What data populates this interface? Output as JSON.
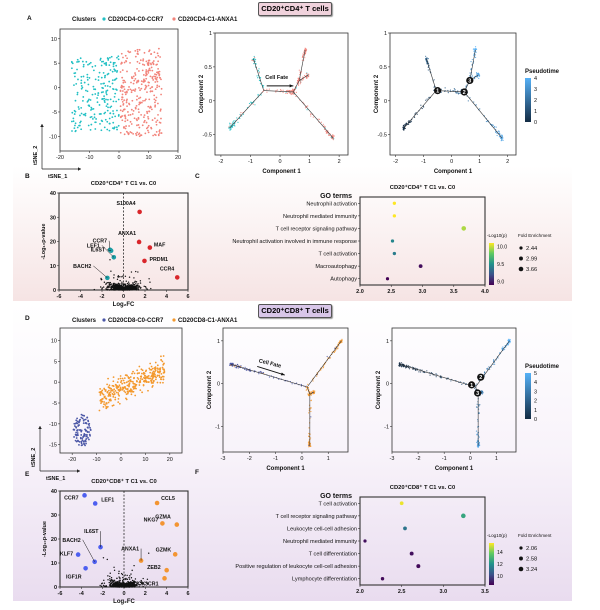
{
  "figure": {
    "cd4_header": "CD20⁺CD4⁺ T cells",
    "cd8_header": "CD20⁺CD8⁺ T cells",
    "panel_labels": [
      "A",
      "B",
      "C",
      "D",
      "E",
      "F"
    ]
  },
  "colors": {
    "cd4_c0": "#22c0c4",
    "cd4_c1": "#f2837a",
    "cd8_c0": "#4a56a6",
    "cd8_c1": "#f3992e",
    "volcano_up_cd4": "#d9262b",
    "volcano_down_cd4": "#1b9ea5",
    "volcano_down_cd8": "#4d5ff0",
    "volcano_up_cd8": "#f39532",
    "pseudotime_low": "#132b43",
    "pseudotime_high": "#56b1f7"
  },
  "chart_data": [
    {
      "id": "A-tsne",
      "type": "scatter",
      "legend_title": "Clusters",
      "xlabel": "tSNE_1",
      "ylabel": "tSNE_2",
      "xlim": [
        -20,
        20
      ],
      "ylim": [
        -13,
        12
      ],
      "xticks": [
        -20,
        -10,
        0,
        10,
        20
      ],
      "yticks": [
        -10,
        -5,
        0,
        5,
        10
      ],
      "clusters": [
        {
          "name": "CD20CD4-C0-CCR7",
          "color": "#22c0c4",
          "x_range": [
            -17,
            0
          ],
          "y_range": [
            -10,
            7
          ]
        },
        {
          "name": "CD20CD4-C1-ANXA1",
          "color": "#f2837a",
          "x_range": [
            0,
            15
          ],
          "y_range": [
            -11,
            8
          ]
        }
      ]
    },
    {
      "id": "A-trajectory-clusters",
      "type": "scatter",
      "xlabel": "Component 1",
      "ylabel": "Component 2",
      "xlim": [
        -2.2,
        2.3
      ],
      "ylim": [
        -0.8,
        1.0
      ],
      "xticks": [
        -2,
        -1,
        0,
        1,
        2
      ],
      "yticks": [
        -0.5,
        0.0,
        0.5,
        1.0
      ],
      "annotation": "Cell Fate",
      "edges": [
        {
          "from": [
            -1.7,
            -0.4
          ],
          "to": [
            -0.55,
            0.15
          ],
          "cluster": 0,
          "pt": [
            0,
            1.2
          ]
        },
        {
          "from": [
            -0.9,
            0.62
          ],
          "to": [
            -0.55,
            0.15
          ],
          "cluster": 0,
          "pt": [
            1.8,
            1.2
          ]
        },
        {
          "from": [
            -0.55,
            0.15
          ],
          "to": [
            0.45,
            0.13
          ],
          "cluster": 1,
          "pt": [
            1.2,
            2.0
          ]
        },
        {
          "from": [
            0.45,
            0.13
          ],
          "to": [
            1.8,
            -0.55
          ],
          "cluster": 1,
          "pt": [
            2.0,
            3.6
          ]
        },
        {
          "from": [
            0.45,
            0.13
          ],
          "to": [
            0.65,
            0.3
          ],
          "cluster": 1,
          "pt": [
            2.0,
            2.6
          ]
        },
        {
          "from": [
            0.65,
            0.3
          ],
          "to": [
            0.85,
            0.75
          ],
          "cluster": 1,
          "pt": [
            2.6,
            4.0
          ]
        },
        {
          "from": [
            0.65,
            0.3
          ],
          "to": [
            0.95,
            0.38
          ],
          "cluster": 1,
          "pt": [
            2.6,
            3.6
          ]
        }
      ]
    },
    {
      "id": "A-trajectory-pseudotime",
      "type": "scatter",
      "xlabel": "Component 1",
      "ylabel": "Component 2",
      "legend_title": "Pseudotime",
      "colorbar_ticks": [
        0,
        1,
        2,
        3,
        4
      ],
      "branch_nodes": [
        {
          "label": "1",
          "x": -0.5,
          "y": 0.15
        },
        {
          "label": "2",
          "x": 0.45,
          "y": 0.13
        },
        {
          "label": "3",
          "x": 0.65,
          "y": 0.3
        }
      ]
    },
    {
      "id": "B-volcano",
      "type": "scatter",
      "title": "CD20⁺CD4⁺ T C1 vs. C0",
      "xlabel": "Log₂FC",
      "ylabel": "-Log₁₀p-value",
      "xlim": [
        -6,
        6
      ],
      "ylim": [
        0,
        40
      ],
      "xticks": [
        -6,
        -4,
        -2,
        0,
        2,
        4,
        6
      ],
      "yticks": [
        0,
        10,
        20,
        30,
        40
      ],
      "labeled_genes": [
        {
          "gene": "S100A4",
          "x": 1.5,
          "y": 32.2,
          "group": "up"
        },
        {
          "gene": "ANXA1",
          "x": 1.45,
          "y": 19.8,
          "group": "up"
        },
        {
          "gene": "MAF",
          "x": 2.45,
          "y": 17.5,
          "group": "up"
        },
        {
          "gene": "PRDM1",
          "x": 1.95,
          "y": 12.0,
          "group": "up"
        },
        {
          "gene": "CCR4",
          "x": 5.0,
          "y": 5.2,
          "group": "up"
        },
        {
          "gene": "CCR7",
          "x": -1.25,
          "y": 16.6,
          "group": "down"
        },
        {
          "gene": "IL6ST",
          "x": -1.15,
          "y": 16.2,
          "group": "down"
        },
        {
          "gene": "LEF1",
          "x": -0.9,
          "y": 13.5,
          "group": "down"
        },
        {
          "gene": "BACH2",
          "x": -1.5,
          "y": 5.0,
          "group": "down"
        }
      ]
    },
    {
      "id": "C-go",
      "type": "scatter",
      "title": "CD20⁺CD4⁺ T C1 vs. C0",
      "ylabel": "GO terms",
      "xlim": [
        2.0,
        4.0
      ],
      "xticks": [
        "2.0",
        "2.5",
        "3.0",
        "3.5",
        "4.0"
      ],
      "color_legend_title": "-Log10(p)",
      "color_ticks": [
        "10.0",
        "9.5",
        "9.0"
      ],
      "color_range": [
        8.9,
        10.1
      ],
      "size_legend_title": "Fold Enrichment",
      "size_legend": [
        "2.44",
        "2.99",
        "3.66"
      ],
      "terms": [
        {
          "term": "Neutrophil activation",
          "fold_enrichment": 2.55,
          "neg_log10_p": 10.1
        },
        {
          "term": "Neutrophil mediated immunity",
          "fold_enrichment": 2.55,
          "neg_log10_p": 10.1
        },
        {
          "term": "T cell receptor signaling pathway",
          "fold_enrichment": 3.66,
          "neg_log10_p": 9.95
        },
        {
          "term": "Neutrophil activation involved in immune response",
          "fold_enrichment": 2.52,
          "neg_log10_p": 9.45
        },
        {
          "term": "T cell activation",
          "fold_enrichment": 2.55,
          "neg_log10_p": 9.4
        },
        {
          "term": "Macroautophagy",
          "fold_enrichment": 2.97,
          "neg_log10_p": 8.95
        },
        {
          "term": "Autophagy",
          "fold_enrichment": 2.44,
          "neg_log10_p": 8.9
        }
      ]
    },
    {
      "id": "D-tsne",
      "type": "scatter",
      "legend_title": "Clusters",
      "xlabel": "tSNE_1",
      "ylabel": "tSNE_2",
      "xlim": [
        -25,
        25
      ],
      "ylim": [
        -17,
        13
      ],
      "xticks": [
        -20,
        -10,
        0,
        10,
        20
      ],
      "yticks": [
        -15,
        -10,
        -5,
        0,
        5,
        10
      ],
      "clusters": [
        {
          "name": "CD20CD8-C0-CCR7",
          "color": "#4a56a6",
          "x_range": [
            -20,
            -12
          ],
          "y_range": [
            -15,
            -8
          ]
        },
        {
          "name": "CD20CD8-C1-ANXA1",
          "color": "#f3992e",
          "x_range": [
            -10,
            19
          ],
          "y_range": [
            -6,
            10
          ]
        }
      ]
    },
    {
      "id": "D-trajectory-clusters",
      "type": "scatter",
      "xlabel": "Component 1",
      "ylabel": "Component 2",
      "xlim": [
        -3.0,
        1.75
      ],
      "ylim": [
        -1.6,
        1.3
      ],
      "xticks": [
        -3,
        -2,
        -1,
        0,
        1
      ],
      "yticks": [
        -1,
        0,
        1
      ],
      "annotation": "Cell Fate",
      "edges": [
        {
          "from": [
            -2.7,
            0.45
          ],
          "to": [
            0.2,
            -0.08
          ],
          "cluster": 0,
          "pt": [
            0,
            2.0
          ]
        },
        {
          "from": [
            0.2,
            -0.08
          ],
          "to": [
            1.5,
            1.0
          ],
          "cluster": 1,
          "pt": [
            2.0,
            5.0
          ]
        },
        {
          "from": [
            0.2,
            -0.08
          ],
          "to": [
            0.3,
            -0.25
          ],
          "cluster": 1,
          "pt": [
            2.0,
            2.4
          ]
        },
        {
          "from": [
            0.3,
            -0.25
          ],
          "to": [
            0.3,
            -1.45
          ],
          "cluster": 1,
          "pt": [
            2.4,
            4.6
          ]
        },
        {
          "from": [
            0.3,
            -0.25
          ],
          "to": [
            0.45,
            -0.2
          ],
          "cluster": 1,
          "pt": [
            2.4,
            3.0
          ]
        }
      ]
    },
    {
      "id": "D-trajectory-pseudotime",
      "type": "scatter",
      "xlabel": "Component 1",
      "ylabel": "Component 2",
      "legend_title": "Pseudotime",
      "colorbar_ticks": [
        0,
        1,
        2,
        3,
        4,
        5
      ],
      "branch_nodes": [
        {
          "label": "1",
          "x": 0.05,
          "y": -0.03
        },
        {
          "label": "2",
          "x": 0.4,
          "y": 0.15
        },
        {
          "label": "3",
          "x": 0.28,
          "y": -0.22
        }
      ]
    },
    {
      "id": "E-volcano",
      "type": "scatter",
      "title": "CD20⁺CD8⁺ T C1 vs. C0",
      "xlabel": "Log₂FC",
      "ylabel": "-Log₁₀p-value",
      "xlim": [
        -6,
        6
      ],
      "ylim": [
        0,
        40
      ],
      "xticks": [
        -6,
        -4,
        -2,
        0,
        2,
        4,
        6
      ],
      "yticks": [
        0,
        10,
        20,
        30,
        40
      ],
      "labeled_genes": [
        {
          "gene": "CCR7",
          "x": -3.7,
          "y": 38.2,
          "group": "down"
        },
        {
          "gene": "LEF1",
          "x": -2.7,
          "y": 34.8,
          "group": "down"
        },
        {
          "gene": "IL6ST",
          "x": -2.2,
          "y": 16.6,
          "group": "down"
        },
        {
          "gene": "BACH2",
          "x": -2.75,
          "y": 10.5,
          "group": "down"
        },
        {
          "gene": "KLF7",
          "x": -4.3,
          "y": 13.5,
          "group": "down"
        },
        {
          "gene": "IGF1R",
          "x": -3.6,
          "y": 7.8,
          "group": "down"
        },
        {
          "gene": "CCL5",
          "x": 3.1,
          "y": 35.0,
          "group": "up"
        },
        {
          "gene": "NKG7",
          "x": 3.6,
          "y": 26.5,
          "group": "up"
        },
        {
          "gene": "GZMA",
          "x": 4.95,
          "y": 26.0,
          "group": "up"
        },
        {
          "gene": "ANXA1",
          "x": 1.6,
          "y": 11.0,
          "group": "up"
        },
        {
          "gene": "GZMK",
          "x": 4.8,
          "y": 13.6,
          "group": "up"
        },
        {
          "gene": "ZEB2",
          "x": 4.0,
          "y": 7.0,
          "group": "up"
        },
        {
          "gene": "CX3CR1",
          "x": 3.8,
          "y": 3.6,
          "group": "up"
        }
      ]
    },
    {
      "id": "F-go",
      "type": "scatter",
      "title": "CD20⁺CD8⁺ T C1 vs. C0",
      "ylabel": "GO terms",
      "xlim": [
        2.0,
        3.5
      ],
      "xticks": [
        "2.0",
        "2.5",
        "3.0",
        "3.5"
      ],
      "color_legend_title": "-Log10(p)",
      "color_ticks": [
        "14",
        "12",
        "10"
      ],
      "color_range": [
        8.5,
        15.5
      ],
      "size_legend_title": "Fold Enrichment",
      "size_legend": [
        "2.06",
        "2.58",
        "3.24"
      ],
      "terms": [
        {
          "term": "T cell activation",
          "fold_enrichment": 2.5,
          "neg_log10_p": 15.3
        },
        {
          "term": "T cell receptor signaling pathway",
          "fold_enrichment": 3.24,
          "neg_log10_p": 12.6
        },
        {
          "term": "Leukocyte cell-cell adhesion",
          "fold_enrichment": 2.54,
          "neg_log10_p": 11.2
        },
        {
          "term": "Neutrophil mediated immunity",
          "fold_enrichment": 2.06,
          "neg_log10_p": 8.8
        },
        {
          "term": "T cell differentiation",
          "fold_enrichment": 2.62,
          "neg_log10_p": 8.8
        },
        {
          "term": "Positive regulation of leukocyte cell-cell adhesion",
          "fold_enrichment": 2.7,
          "neg_log10_p": 8.7
        },
        {
          "term": "Lymphocyte differentiation",
          "fold_enrichment": 2.27,
          "neg_log10_p": 8.7
        }
      ]
    }
  ]
}
